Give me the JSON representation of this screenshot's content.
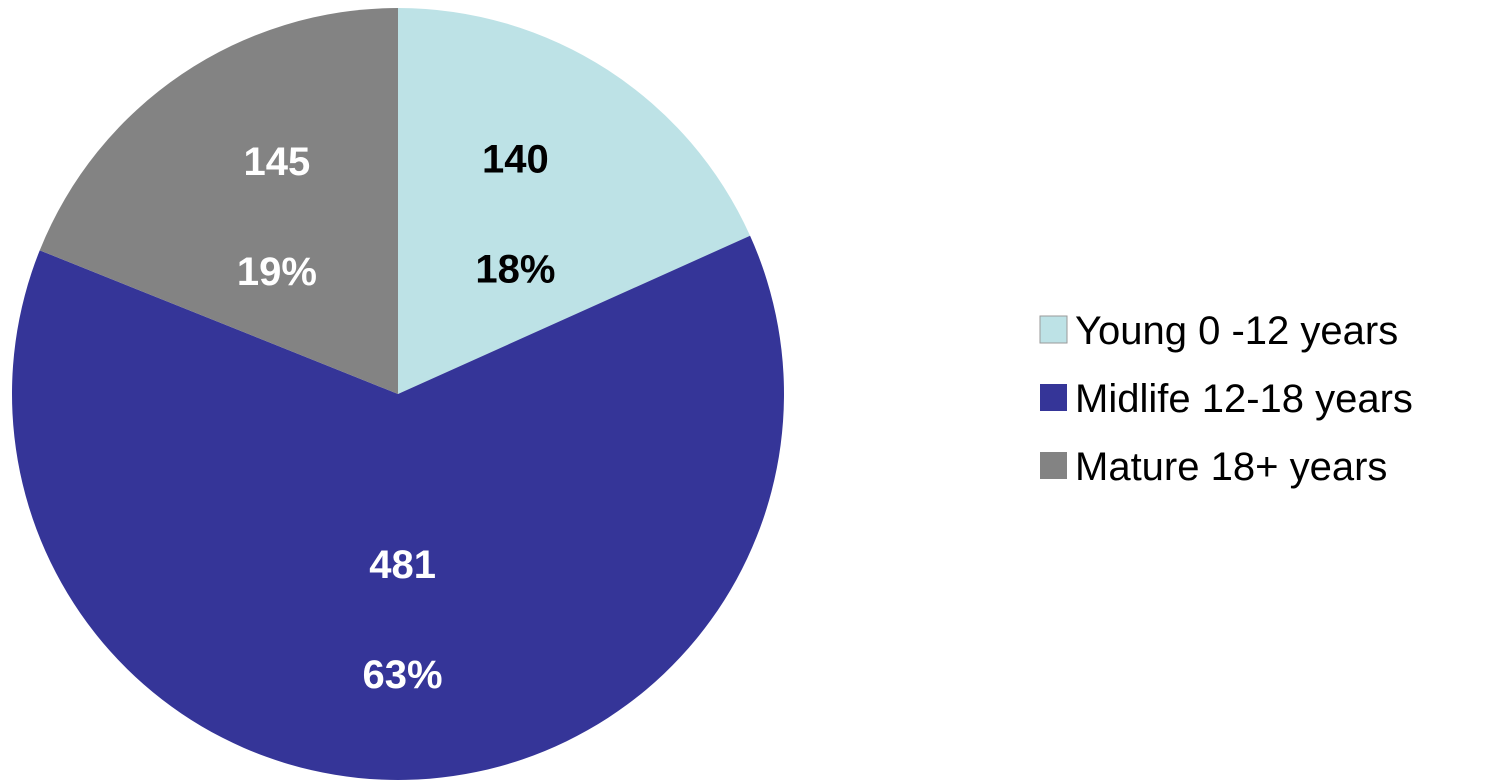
{
  "chart_data": {
    "type": "pie",
    "title": "",
    "start_angle_deg": 0,
    "direction": "clockwise",
    "legend_position": "right",
    "slices": [
      {
        "name": "Young 0 -12 years",
        "value": 140,
        "percent": "18%",
        "color": "#bde2e6",
        "label_color": "#000000"
      },
      {
        "name": "Midlife 12-18 years",
        "value": 481,
        "percent": "63%",
        "color": "#353598",
        "label_color": "#ffffff"
      },
      {
        "name": "Mature 18+ years",
        "value": 145,
        "percent": "19%",
        "color": "#838383",
        "label_color": "#ffffff"
      }
    ]
  }
}
